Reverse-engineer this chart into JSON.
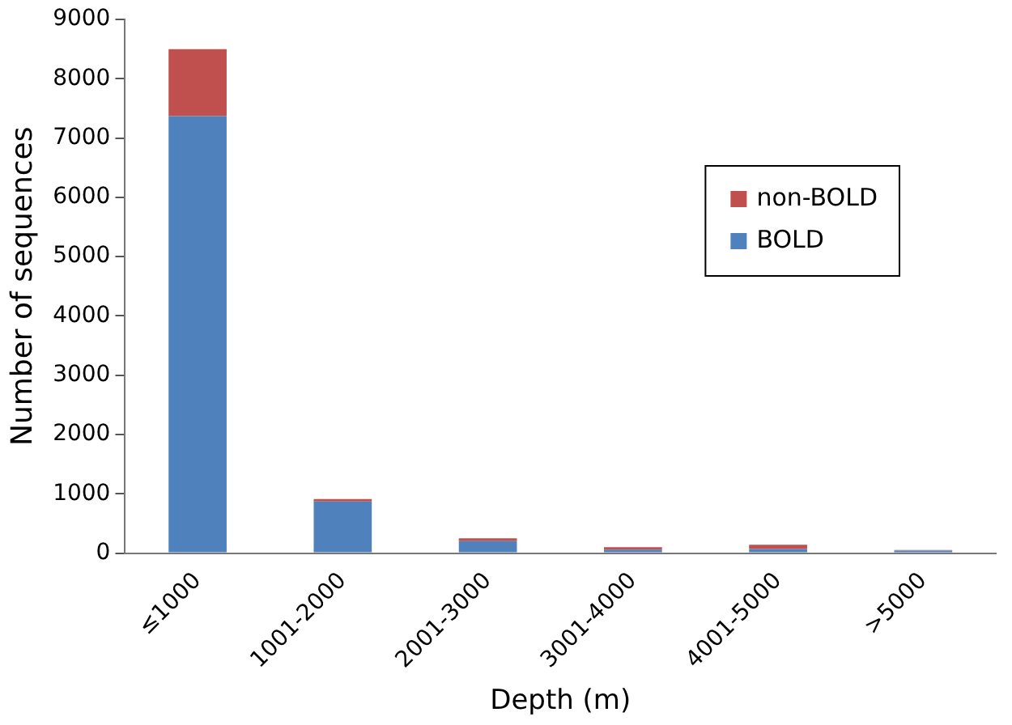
{
  "chart_data": {
    "type": "bar",
    "stacked": true,
    "xlabel": "Depth (m)",
    "ylabel": "Number of sequences",
    "categories": [
      "≤1000",
      "1001-2000",
      "2001-3000",
      "3001-4000",
      "4001-5000",
      ">5000"
    ],
    "series": [
      {
        "name": "BOLD",
        "color": "#4f81bd",
        "values": [
          7370,
          870,
          200,
          60,
          70,
          40
        ]
      },
      {
        "name": "non-BOLD",
        "color": "#c0504d",
        "values": [
          1130,
          40,
          50,
          40,
          70,
          10
        ]
      }
    ],
    "ylim": [
      0,
      9000
    ],
    "yticks": [
      0,
      1000,
      2000,
      3000,
      4000,
      5000,
      6000,
      7000,
      8000,
      9000
    ],
    "grid": false,
    "legend": "right"
  }
}
